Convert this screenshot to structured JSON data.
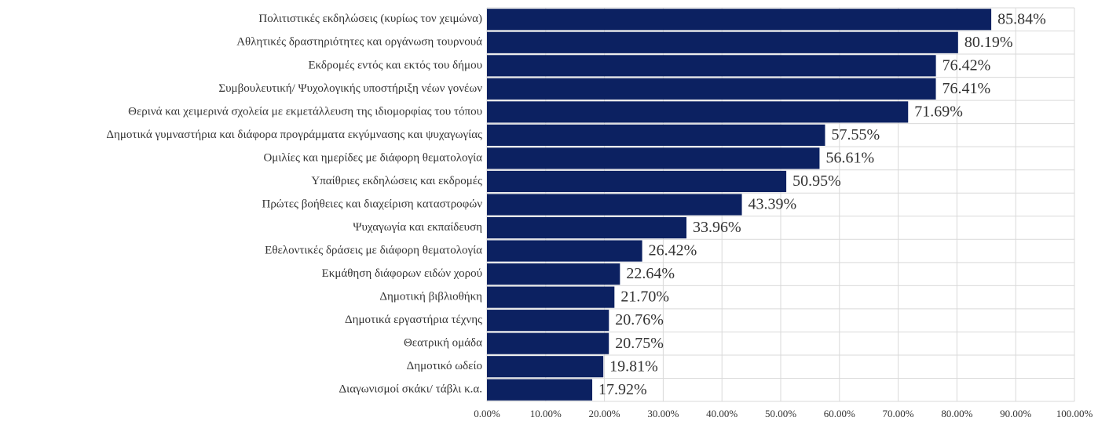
{
  "chart_data": {
    "type": "barh",
    "categories": [
      "Πολιτιστικές εκδηλώσεις (κυρίως τον χειμώνα)",
      "Αθλητικές δραστηριότητες και οργάνωση τουρνουά",
      "Εκδρομές εντός και εκτός του δήμου",
      "Συμβουλευτική/ Ψυχολογικής υποστήριξη νέων γονέων",
      "Θερινά και χειμερινά σχολεία με εκμετάλλευση της ιδιομορφίας του τόπου",
      "Δημοτικά γυμναστήρια και διάφορα προγράμματα εκγύμνασης και ψυχαγωγίας",
      "Ομιλίες και ημερίδες με διάφορη θεματολογία",
      "Υπαίθριες εκδηλώσεις και εκδρομές",
      "Πρώτες βοήθειες και διαχείριση καταστροφών",
      "Ψυχαγωγία και εκπαίδευση",
      "Εθελοντικές δράσεις με διάφορη θεματολογία",
      "Εκμάθηση διάφορων ειδών χορού",
      "Δημοτική βιβλιοθήκη",
      "Δημοτικά εργαστήρια τέχνης",
      "Θεατρική ομάδα",
      "Δημοτικό ωδείο",
      "Διαγωνισμοί σκάκι/ τάβλι κ.α."
    ],
    "values": [
      85.84,
      80.19,
      76.42,
      76.41,
      71.69,
      57.55,
      56.61,
      50.95,
      43.39,
      33.96,
      26.42,
      22.64,
      21.7,
      20.76,
      20.75,
      19.81,
      17.92
    ],
    "value_labels": [
      "85.84%",
      "80.19%",
      "76.42%",
      "76.41%",
      "71.69%",
      "57.55%",
      "56.61%",
      "50.95%",
      "43.39%",
      "33.96%",
      "26.42%",
      "22.64%",
      "21.70%",
      "20.76%",
      "20.75%",
      "19.81%",
      "17.92%"
    ],
    "color": "#0c2161",
    "xlim": [
      0,
      100
    ],
    "xticks": [
      {
        "value": 0,
        "label": "0.00%"
      },
      {
        "value": 10,
        "label": "10.00%"
      },
      {
        "value": 20,
        "label": "20.00%"
      },
      {
        "value": 30,
        "label": "30.00%"
      },
      {
        "value": 40,
        "label": "40.00%"
      },
      {
        "value": 50,
        "label": "50.00%"
      },
      {
        "value": 60,
        "label": "60.00%"
      },
      {
        "value": 70,
        "label": "70.00%"
      },
      {
        "value": 80,
        "label": "80.00%"
      },
      {
        "value": 90,
        "label": "90.00%"
      },
      {
        "value": 100,
        "label": "100.00%"
      }
    ],
    "grid": true
  }
}
